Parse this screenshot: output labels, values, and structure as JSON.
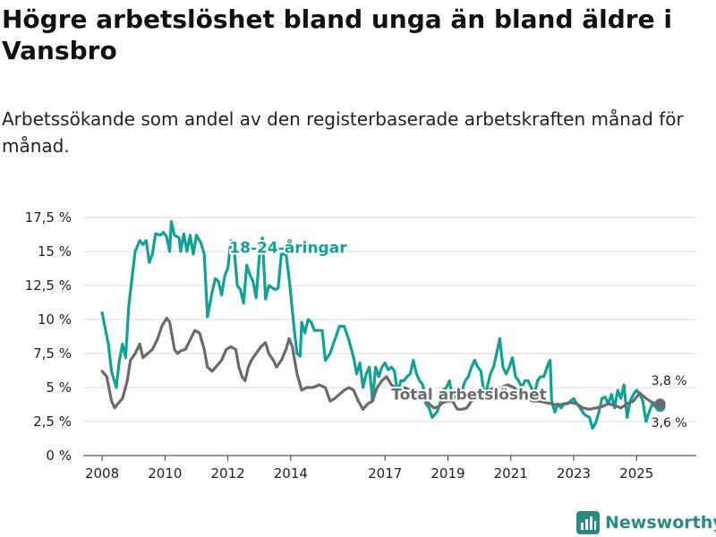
{
  "title": "Högre arbetslöshet bland unga än bland äldre i Vansbro",
  "subtitle": "Arbetssökande som andel av den registerbaserade arbetskraften månad för månad.",
  "brand": {
    "name": "Newsworthy",
    "color": "#2a8a86"
  },
  "colors": {
    "youth": "#13a095",
    "total": "#6b6b6e",
    "grid": "#dddddd",
    "axis": "#333333"
  },
  "chart_data": {
    "type": "line",
    "title": "Högre arbetslöshet bland unga än bland äldre i Vansbro",
    "xlabel": "",
    "ylabel": "",
    "ylim": [
      0,
      17.5
    ],
    "xlim": [
      2007.4,
      2026.9
    ],
    "grid": true,
    "y_ticks": [
      {
        "value": 0,
        "label": "0 %"
      },
      {
        "value": 2.5,
        "label": "2,5 %"
      },
      {
        "value": 5,
        "label": "5 %"
      },
      {
        "value": 7.5,
        "label": "7,5 %"
      },
      {
        "value": 10,
        "label": "10 %"
      },
      {
        "value": 12.5,
        "label": "12,5 %"
      },
      {
        "value": 15,
        "label": "15 %"
      },
      {
        "value": 17.5,
        "label": "17,5 %"
      }
    ],
    "x_ticks": [
      {
        "value": 2008,
        "label": "2008"
      },
      {
        "value": 2010,
        "label": "2010"
      },
      {
        "value": 2012,
        "label": "2012"
      },
      {
        "value": 2014,
        "label": "2014"
      },
      {
        "value": 2017,
        "label": "2017"
      },
      {
        "value": 2019,
        "label": "2019"
      },
      {
        "value": 2021,
        "label": "2021"
      },
      {
        "value": 2023,
        "label": "2023"
      },
      {
        "value": 2025,
        "label": "2025"
      }
    ],
    "series": [
      {
        "name": "18-24-åringar",
        "label": "18-24-åringar",
        "color_key": "youth",
        "end_label": "3,6 %",
        "points": [
          [
            2008.0,
            10.5
          ],
          [
            2008.2,
            8.2
          ],
          [
            2008.3,
            6.2
          ],
          [
            2008.45,
            5.0
          ],
          [
            2008.55,
            7.0
          ],
          [
            2008.65,
            8.2
          ],
          [
            2008.75,
            7.2
          ],
          [
            2008.85,
            11.0
          ],
          [
            2008.95,
            13.0
          ],
          [
            2009.05,
            15.0
          ],
          [
            2009.2,
            15.8
          ],
          [
            2009.3,
            15.5
          ],
          [
            2009.4,
            15.8
          ],
          [
            2009.5,
            14.2
          ],
          [
            2009.6,
            14.8
          ],
          [
            2009.7,
            16.3
          ],
          [
            2009.85,
            16.2
          ],
          [
            2009.95,
            16.4
          ],
          [
            2010.05,
            16.1
          ],
          [
            2010.15,
            15.0
          ],
          [
            2010.2,
            17.2
          ],
          [
            2010.3,
            16.2
          ],
          [
            2010.45,
            16.0
          ],
          [
            2010.5,
            15.0
          ],
          [
            2010.6,
            16.3
          ],
          [
            2010.7,
            15.0
          ],
          [
            2010.8,
            16.2
          ],
          [
            2010.9,
            14.8
          ],
          [
            2011.0,
            16.2
          ],
          [
            2011.15,
            15.6
          ],
          [
            2011.25,
            14.8
          ],
          [
            2011.35,
            10.2
          ],
          [
            2011.5,
            12.0
          ],
          [
            2011.6,
            13.0
          ],
          [
            2011.7,
            12.8
          ],
          [
            2011.8,
            11.8
          ],
          [
            2011.9,
            13.2
          ],
          [
            2012.0,
            13.8
          ],
          [
            2012.1,
            15.8
          ],
          [
            2012.2,
            15.2
          ],
          [
            2012.3,
            12.5
          ],
          [
            2012.4,
            12.2
          ],
          [
            2012.5,
            11.2
          ],
          [
            2012.6,
            14.0
          ],
          [
            2012.7,
            13.3
          ],
          [
            2012.8,
            12.8
          ],
          [
            2012.9,
            11.6
          ],
          [
            2013.0,
            14.6
          ],
          [
            2013.1,
            16.0
          ],
          [
            2013.2,
            11.5
          ],
          [
            2013.3,
            12.5
          ],
          [
            2013.5,
            12.2
          ],
          [
            2013.6,
            12.3
          ],
          [
            2013.7,
            14.8
          ],
          [
            2013.85,
            14.8
          ],
          [
            2013.95,
            13.0
          ],
          [
            2014.1,
            9.5
          ],
          [
            2014.2,
            7.5
          ],
          [
            2014.3,
            7.3
          ],
          [
            2014.35,
            9.8
          ],
          [
            2014.45,
            9.0
          ],
          [
            2014.55,
            10.0
          ],
          [
            2014.65,
            9.8
          ],
          [
            2014.75,
            9.2
          ],
          [
            2014.85,
            9.2
          ],
          [
            2015.0,
            9.2
          ],
          [
            2015.1,
            7.0
          ],
          [
            2015.25,
            7.5
          ],
          [
            2015.4,
            8.5
          ],
          [
            2015.55,
            9.5
          ],
          [
            2015.7,
            9.5
          ],
          [
            2015.85,
            8.5
          ],
          [
            2016.0,
            7.2
          ],
          [
            2016.1,
            6.0
          ],
          [
            2016.2,
            6.8
          ],
          [
            2016.3,
            5.0
          ],
          [
            2016.4,
            6.0
          ],
          [
            2016.5,
            6.5
          ],
          [
            2016.6,
            4.0
          ],
          [
            2016.7,
            6.5
          ],
          [
            2016.8,
            5.8
          ],
          [
            2016.9,
            6.5
          ],
          [
            2017.0,
            6.8
          ],
          [
            2017.1,
            6.3
          ],
          [
            2017.2,
            6.5
          ],
          [
            2017.3,
            6.2
          ],
          [
            2017.4,
            4.5
          ],
          [
            2017.5,
            5.5
          ],
          [
            2017.6,
            5.5
          ],
          [
            2017.7,
            5.8
          ],
          [
            2017.8,
            6.0
          ],
          [
            2017.9,
            7.0
          ],
          [
            2018.0,
            6.0
          ],
          [
            2018.1,
            5.5
          ],
          [
            2018.2,
            5.2
          ],
          [
            2018.3,
            3.8
          ],
          [
            2018.4,
            3.5
          ],
          [
            2018.5,
            2.8
          ],
          [
            2018.65,
            3.2
          ],
          [
            2018.75,
            3.8
          ],
          [
            2018.85,
            4.8
          ],
          [
            2018.95,
            5.0
          ],
          [
            2019.05,
            5.5
          ],
          [
            2019.15,
            4.0
          ],
          [
            2019.3,
            5.0
          ],
          [
            2019.45,
            4.8
          ],
          [
            2019.55,
            5.5
          ],
          [
            2019.65,
            5.8
          ],
          [
            2019.75,
            6.5
          ],
          [
            2019.85,
            7.0
          ],
          [
            2019.95,
            6.5
          ],
          [
            2020.05,
            6.2
          ],
          [
            2020.15,
            4.5
          ],
          [
            2020.25,
            5.0
          ],
          [
            2020.35,
            6.0
          ],
          [
            2020.45,
            6.5
          ],
          [
            2020.55,
            7.5
          ],
          [
            2020.65,
            8.6
          ],
          [
            2020.75,
            6.5
          ],
          [
            2020.85,
            6.0
          ],
          [
            2020.95,
            6.5
          ],
          [
            2021.05,
            7.2
          ],
          [
            2021.15,
            5.8
          ],
          [
            2021.25,
            5.5
          ],
          [
            2021.35,
            5.0
          ],
          [
            2021.45,
            5.5
          ],
          [
            2021.55,
            5.5
          ],
          [
            2021.65,
            5.0
          ],
          [
            2021.75,
            4.5
          ],
          [
            2021.85,
            5.5
          ],
          [
            2021.95,
            5.8
          ],
          [
            2022.05,
            5.8
          ],
          [
            2022.2,
            6.8
          ],
          [
            2022.25,
            7.0
          ],
          [
            2022.3,
            4.0
          ],
          [
            2022.4,
            3.2
          ],
          [
            2022.5,
            3.8
          ],
          [
            2022.6,
            3.5
          ],
          [
            2022.7,
            3.8
          ],
          [
            2022.8,
            3.8
          ],
          [
            2022.9,
            4.0
          ],
          [
            2023.0,
            4.2
          ],
          [
            2023.1,
            3.8
          ],
          [
            2023.2,
            3.5
          ],
          [
            2023.35,
            3.0
          ],
          [
            2023.5,
            2.8
          ],
          [
            2023.6,
            2.0
          ],
          [
            2023.7,
            2.4
          ],
          [
            2023.8,
            3.2
          ],
          [
            2023.9,
            4.2
          ],
          [
            2024.0,
            4.3
          ],
          [
            2024.1,
            3.8
          ],
          [
            2024.2,
            4.5
          ],
          [
            2024.3,
            3.5
          ],
          [
            2024.4,
            4.8
          ],
          [
            2024.5,
            4.2
          ],
          [
            2024.6,
            5.2
          ],
          [
            2024.7,
            2.8
          ],
          [
            2024.8,
            4.0
          ],
          [
            2024.9,
            4.5
          ],
          [
            2025.0,
            4.8
          ],
          [
            2025.1,
            4.5
          ],
          [
            2025.2,
            4.0
          ],
          [
            2025.3,
            2.5
          ],
          [
            2025.4,
            3.2
          ],
          [
            2025.5,
            3.8
          ],
          [
            2025.6,
            3.6
          ],
          [
            2025.75,
            3.6
          ]
        ]
      },
      {
        "name": "Total arbetslöshet",
        "label": "Total arbetslöshet",
        "color_key": "total",
        "end_label": "3,8 %",
        "points": [
          [
            2008.0,
            6.2
          ],
          [
            2008.15,
            5.8
          ],
          [
            2008.3,
            4.0
          ],
          [
            2008.4,
            3.5
          ],
          [
            2008.5,
            3.8
          ],
          [
            2008.65,
            4.2
          ],
          [
            2008.8,
            5.5
          ],
          [
            2008.9,
            7.0
          ],
          [
            2009.05,
            7.5
          ],
          [
            2009.2,
            8.2
          ],
          [
            2009.3,
            7.2
          ],
          [
            2009.45,
            7.5
          ],
          [
            2009.6,
            7.8
          ],
          [
            2009.75,
            8.5
          ],
          [
            2009.9,
            9.5
          ],
          [
            2010.05,
            10.1
          ],
          [
            2010.15,
            9.8
          ],
          [
            2010.3,
            7.8
          ],
          [
            2010.4,
            7.5
          ],
          [
            2010.5,
            7.7
          ],
          [
            2010.65,
            7.8
          ],
          [
            2010.8,
            8.5
          ],
          [
            2010.95,
            9.2
          ],
          [
            2011.1,
            9.0
          ],
          [
            2011.25,
            7.8
          ],
          [
            2011.35,
            6.5
          ],
          [
            2011.5,
            6.2
          ],
          [
            2011.65,
            6.6
          ],
          [
            2011.8,
            7.0
          ],
          [
            2011.95,
            7.8
          ],
          [
            2012.1,
            8.0
          ],
          [
            2012.25,
            7.8
          ],
          [
            2012.35,
            6.5
          ],
          [
            2012.45,
            5.8
          ],
          [
            2012.55,
            5.5
          ],
          [
            2012.65,
            6.5
          ],
          [
            2012.75,
            7.0
          ],
          [
            2012.9,
            7.5
          ],
          [
            2013.05,
            8.0
          ],
          [
            2013.2,
            8.3
          ],
          [
            2013.3,
            7.5
          ],
          [
            2013.45,
            7.0
          ],
          [
            2013.55,
            6.5
          ],
          [
            2013.7,
            7.0
          ],
          [
            2013.85,
            7.8
          ],
          [
            2013.95,
            8.6
          ],
          [
            2014.05,
            8.0
          ],
          [
            2014.2,
            6.0
          ],
          [
            2014.35,
            4.8
          ],
          [
            2014.5,
            5.0
          ],
          [
            2014.7,
            5.0
          ],
          [
            2014.9,
            5.2
          ],
          [
            2015.1,
            5.0
          ],
          [
            2015.25,
            4.0
          ],
          [
            2015.4,
            4.2
          ],
          [
            2015.55,
            4.5
          ],
          [
            2015.7,
            4.8
          ],
          [
            2015.85,
            5.0
          ],
          [
            2016.0,
            4.8
          ],
          [
            2016.15,
            4.0
          ],
          [
            2016.3,
            3.4
          ],
          [
            2016.45,
            3.8
          ],
          [
            2016.6,
            4.0
          ],
          [
            2016.75,
            5.0
          ],
          [
            2016.9,
            5.5
          ],
          [
            2017.05,
            5.8
          ],
          [
            2017.2,
            5.2
          ],
          [
            2017.4,
            4.9
          ],
          [
            2017.6,
            5.0
          ],
          [
            2017.8,
            4.8
          ],
          [
            2018.0,
            4.6
          ],
          [
            2018.2,
            4.3
          ],
          [
            2018.4,
            3.8
          ],
          [
            2018.55,
            3.5
          ],
          [
            2018.7,
            3.6
          ],
          [
            2018.85,
            3.9
          ],
          [
            2019.0,
            4.0
          ],
          [
            2019.15,
            4.0
          ],
          [
            2019.3,
            3.4
          ],
          [
            2019.45,
            3.4
          ],
          [
            2019.6,
            3.5
          ],
          [
            2019.75,
            4.0
          ],
          [
            2019.9,
            4.2
          ],
          [
            2020.1,
            4.3
          ],
          [
            2020.3,
            4.8
          ],
          [
            2020.5,
            5.0
          ],
          [
            2020.7,
            5.0
          ],
          [
            2020.9,
            5.2
          ],
          [
            2021.1,
            5.0
          ],
          [
            2021.3,
            4.5
          ],
          [
            2021.5,
            4.2
          ],
          [
            2021.7,
            4.0
          ],
          [
            2021.9,
            4.0
          ],
          [
            2022.1,
            3.9
          ],
          [
            2022.3,
            3.8
          ],
          [
            2022.5,
            3.7
          ],
          [
            2022.7,
            3.8
          ],
          [
            2022.9,
            3.9
          ],
          [
            2023.1,
            3.8
          ],
          [
            2023.3,
            3.5
          ],
          [
            2023.5,
            3.4
          ],
          [
            2023.7,
            3.5
          ],
          [
            2023.9,
            3.6
          ],
          [
            2024.1,
            3.8
          ],
          [
            2024.3,
            3.7
          ],
          [
            2024.5,
            3.5
          ],
          [
            2024.7,
            3.8
          ],
          [
            2024.9,
            4.0
          ],
          [
            2025.1,
            4.6
          ],
          [
            2025.3,
            4.2
          ],
          [
            2025.5,
            3.9
          ],
          [
            2025.75,
            3.8
          ]
        ]
      }
    ]
  }
}
